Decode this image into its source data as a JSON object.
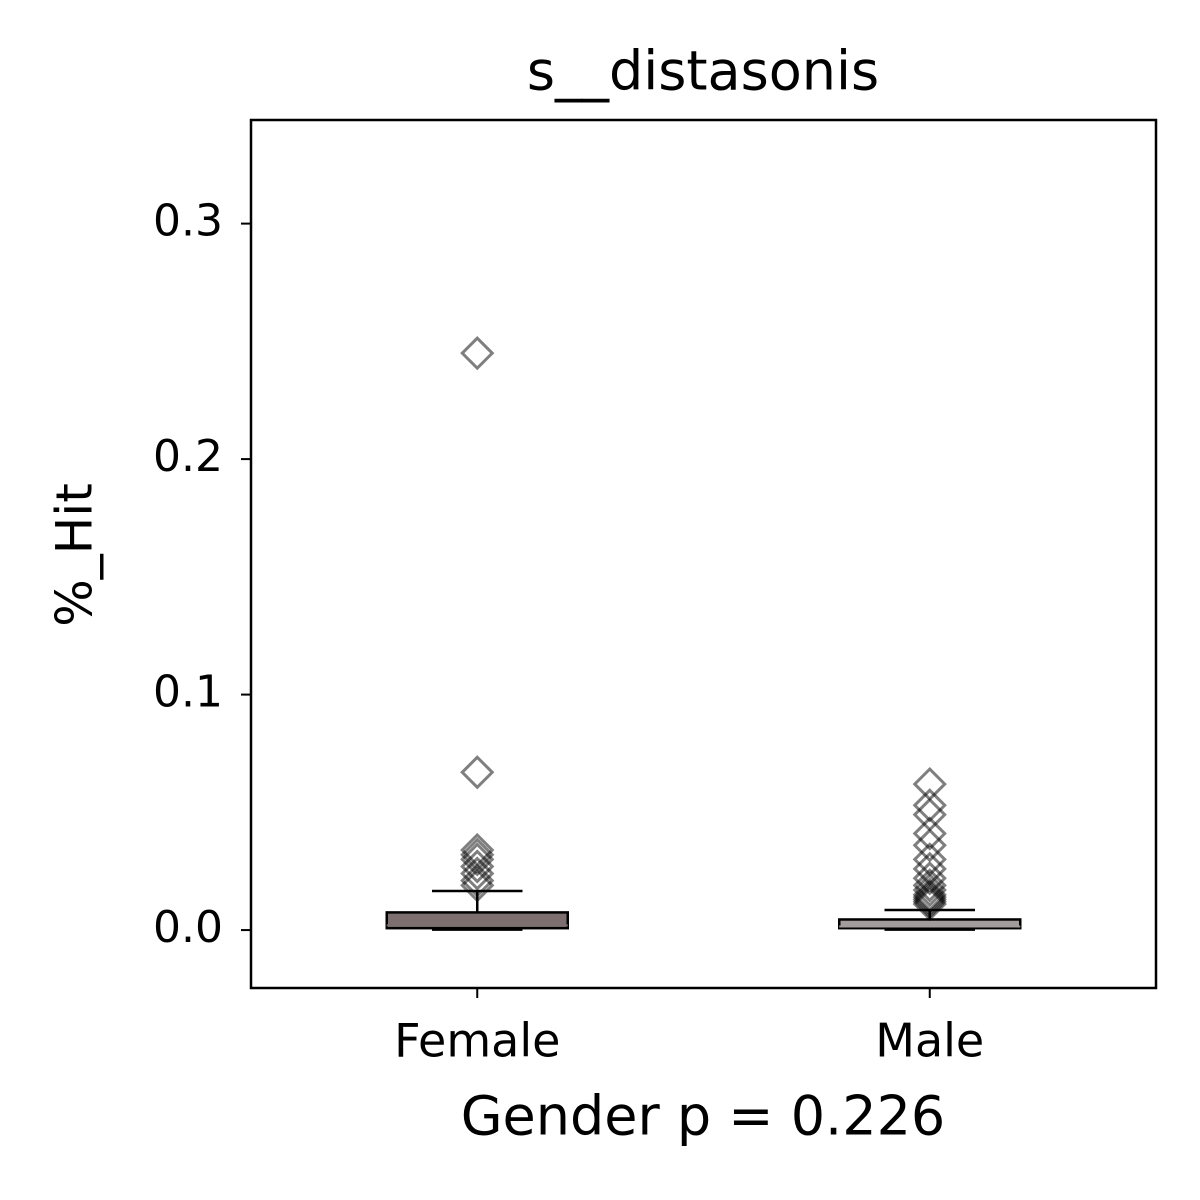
{
  "chart_data": {
    "type": "box",
    "title": "s__distasonis",
    "x_label": "Gender p = 0.226",
    "y_label": "%_Hit",
    "categories": [
      "Female",
      "Male"
    ],
    "boxes": [
      {
        "color": "#7d6f6f",
        "min": 0.0002,
        "q1": 0.0008,
        "median": 0.002,
        "q3": 0.0075,
        "max": 0.0166,
        "outliers": [
          0.245,
          0.067,
          0.034,
          0.032,
          0.03,
          0.027,
          0.024,
          0.021,
          0.019
        ]
      },
      {
        "color": "#a39c9c",
        "min": 0.0002,
        "q1": 0.0008,
        "median": 0.0015,
        "q3": 0.0045,
        "max": 0.0085,
        "outliers": [
          0.062,
          0.053,
          0.049,
          0.041,
          0.036,
          0.03,
          0.026,
          0.022,
          0.019,
          0.017,
          0.015,
          0.014,
          0.013,
          0.012,
          0.011
        ]
      }
    ],
    "ylim": [
      -0.0246,
      0.344
    ],
    "yticks": [
      {
        "value": 0,
        "label": "0.0"
      },
      0.1,
      0.2,
      0.3
    ]
  }
}
